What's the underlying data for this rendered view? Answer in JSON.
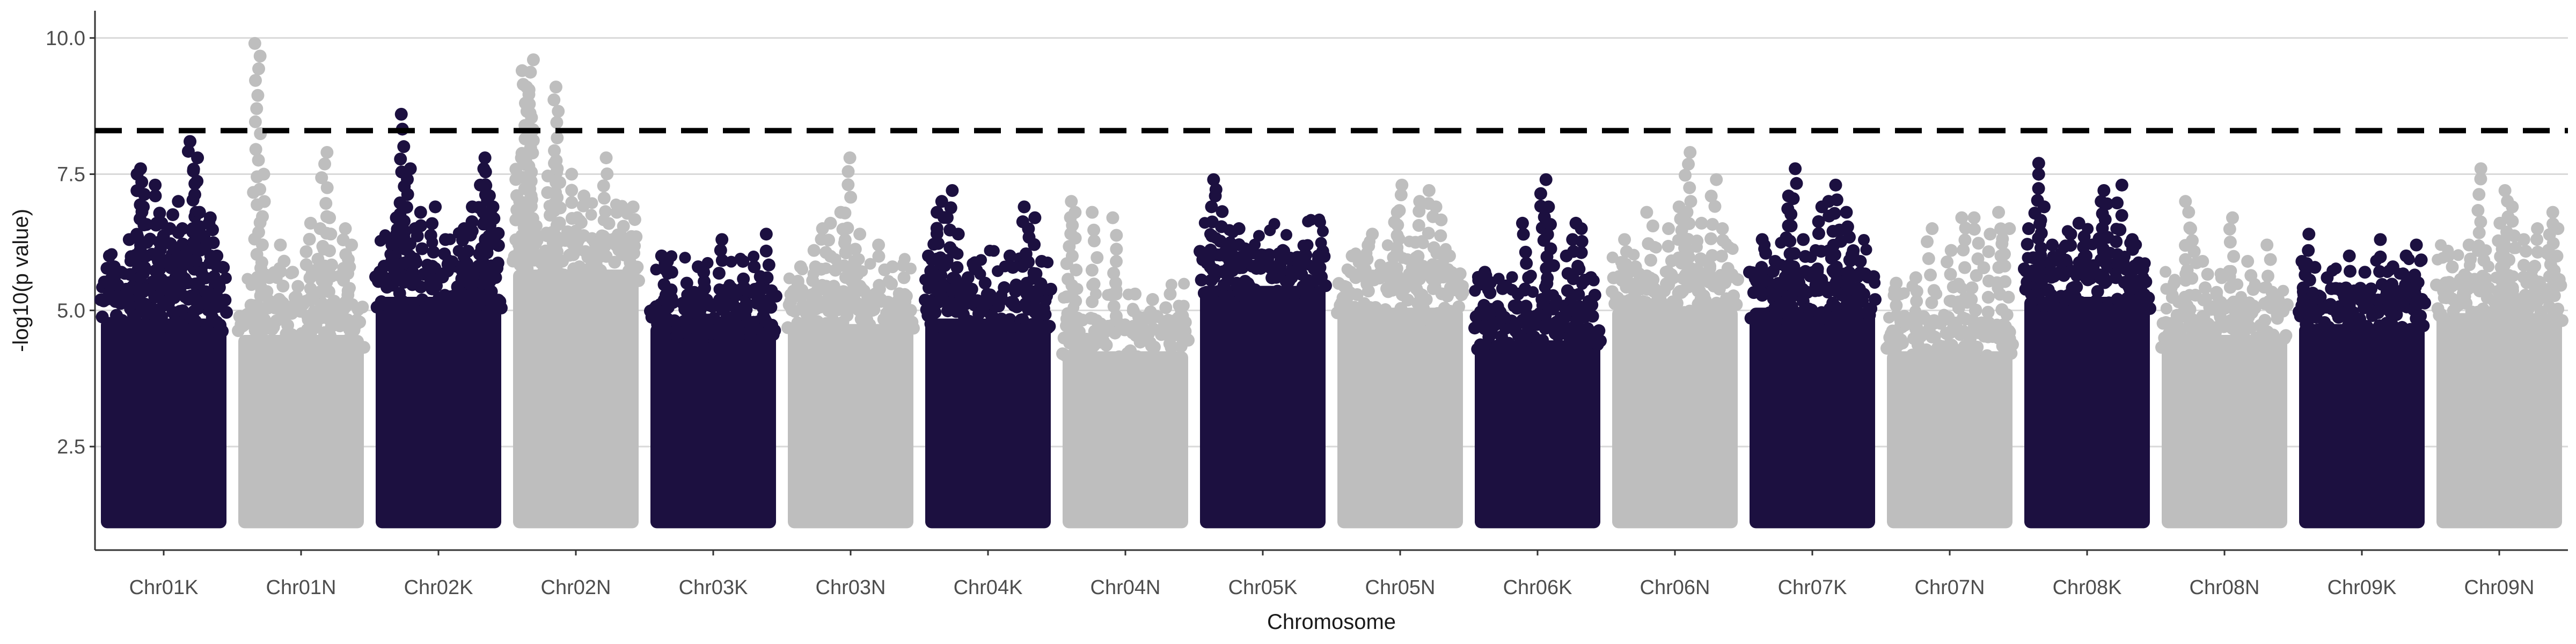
{
  "chart_data": {
    "type": "scatter",
    "subtype": "manhattan",
    "title": "",
    "xlabel": "Chromosome",
    "ylabel": "-log10(p value)",
    "ylim": [
      0.6,
      10.5
    ],
    "yticks": [
      2.5,
      5.0,
      7.5,
      10.0
    ],
    "ytick_labels": [
      "2.5",
      "5.0",
      "7.5",
      "10.0"
    ],
    "grid": "horizontal major lines only",
    "legend": "none",
    "threshold": {
      "value": 8.3,
      "style": "dashed",
      "color": "#000000"
    },
    "colors": {
      "odd": "#1c1040",
      "even": "#bebebe",
      "grid": "#d9d9d9",
      "axis": "#333333"
    },
    "chromosomes": [
      {
        "label": "Chr01K",
        "base_top": 5.1,
        "highs": [
          [
            0.05,
            6.0
          ],
          [
            0.1,
            5.8
          ],
          [
            0.15,
            5.7
          ],
          [
            0.25,
            6.3
          ],
          [
            0.3,
            7.5
          ],
          [
            0.32,
            7.6
          ],
          [
            0.35,
            6.9
          ],
          [
            0.42,
            6.6
          ],
          [
            0.45,
            7.3
          ],
          [
            0.5,
            6.6
          ],
          [
            0.55,
            6.5
          ],
          [
            0.6,
            7.0
          ],
          [
            0.65,
            6.5
          ],
          [
            0.72,
            8.1
          ],
          [
            0.74,
            7.8
          ],
          [
            0.78,
            6.8
          ],
          [
            0.85,
            6.6
          ],
          [
            0.9,
            6.7
          ],
          [
            0.95,
            6.0
          ]
        ]
      },
      {
        "label": "Chr01N",
        "base_top": 4.8,
        "highs": [
          [
            0.15,
            9.9
          ],
          [
            0.18,
            7.5
          ],
          [
            0.25,
            5.6
          ],
          [
            0.35,
            6.2
          ],
          [
            0.45,
            5.7
          ],
          [
            0.55,
            6.6
          ],
          [
            0.65,
            6.5
          ],
          [
            0.68,
            7.9
          ],
          [
            0.75,
            6.7
          ],
          [
            0.85,
            6.5
          ],
          [
            0.9,
            6.2
          ]
        ]
      },
      {
        "label": "Chr02K",
        "base_top": 5.5,
        "highs": [
          [
            0.1,
            6.2
          ],
          [
            0.15,
            6.7
          ],
          [
            0.2,
            8.6
          ],
          [
            0.25,
            7.6
          ],
          [
            0.3,
            6.5
          ],
          [
            0.35,
            6.8
          ],
          [
            0.45,
            6.9
          ],
          [
            0.55,
            6.3
          ],
          [
            0.7,
            6.5
          ],
          [
            0.75,
            6.9
          ],
          [
            0.85,
            7.3
          ],
          [
            0.88,
            7.6
          ],
          [
            0.9,
            7.8
          ],
          [
            0.95,
            6.9
          ]
        ]
      },
      {
        "label": "Chr02N",
        "base_top": 6.0,
        "highs": [
          [
            0.05,
            7.8
          ],
          [
            0.08,
            7.0
          ],
          [
            0.1,
            9.4
          ],
          [
            0.12,
            9.1
          ],
          [
            0.15,
            9.6
          ],
          [
            0.3,
            7.7
          ],
          [
            0.33,
            9.1
          ],
          [
            0.36,
            7.6
          ],
          [
            0.45,
            7.5
          ],
          [
            0.55,
            7.1
          ],
          [
            0.75,
            7.8
          ],
          [
            0.85,
            6.8
          ],
          [
            0.95,
            6.9
          ]
        ]
      },
      {
        "label": "Chr03K",
        "base_top": 5.0,
        "highs": [
          [
            0.1,
            6.0
          ],
          [
            0.15,
            5.9
          ],
          [
            0.3,
            5.5
          ],
          [
            0.4,
            5.8
          ],
          [
            0.45,
            5.7
          ],
          [
            0.55,
            6.3
          ],
          [
            0.65,
            5.4
          ],
          [
            0.75,
            5.9
          ],
          [
            0.85,
            5.8
          ],
          [
            0.95,
            6.4
          ]
        ]
      },
      {
        "label": "Chr03N",
        "base_top": 5.0,
        "highs": [
          [
            0.1,
            5.8
          ],
          [
            0.2,
            6.1
          ],
          [
            0.28,
            6.5
          ],
          [
            0.35,
            6.6
          ],
          [
            0.45,
            6.8
          ],
          [
            0.48,
            7.8
          ],
          [
            0.55,
            6.4
          ],
          [
            0.75,
            6.2
          ],
          [
            0.85,
            5.8
          ],
          [
            0.95,
            5.6
          ]
        ]
      },
      {
        "label": "Chr04K",
        "base_top": 5.1,
        "highs": [
          [
            0.05,
            6.0
          ],
          [
            0.08,
            6.8
          ],
          [
            0.12,
            7.0
          ],
          [
            0.2,
            7.2
          ],
          [
            0.25,
            6.4
          ],
          [
            0.35,
            5.6
          ],
          [
            0.5,
            5.5
          ],
          [
            0.6,
            5.2
          ],
          [
            0.7,
            6.0
          ],
          [
            0.8,
            6.9
          ],
          [
            0.85,
            6.7
          ],
          [
            0.9,
            5.9
          ]
        ]
      },
      {
        "label": "Chr04N",
        "base_top": 4.5,
        "highs": [
          [
            0.05,
            7.0
          ],
          [
            0.1,
            6.8
          ],
          [
            0.25,
            6.8
          ],
          [
            0.4,
            6.7
          ],
          [
            0.55,
            5.3
          ],
          [
            0.7,
            5.2
          ],
          [
            0.85,
            5.3
          ],
          [
            0.95,
            4.9
          ]
        ]
      },
      {
        "label": "Chr05K",
        "base_top": 5.7,
        "highs": [
          [
            0.1,
            7.4
          ],
          [
            0.15,
            7.1
          ],
          [
            0.2,
            6.2
          ],
          [
            0.3,
            6.5
          ],
          [
            0.45,
            6.0
          ],
          [
            0.55,
            5.8
          ],
          [
            0.65,
            6.1
          ],
          [
            0.8,
            5.9
          ],
          [
            0.95,
            6.0
          ]
        ]
      },
      {
        "label": "Chr05N",
        "base_top": 5.3,
        "highs": [
          [
            0.1,
            6.0
          ],
          [
            0.25,
            6.4
          ],
          [
            0.45,
            6.8
          ],
          [
            0.5,
            7.3
          ],
          [
            0.65,
            7.0
          ],
          [
            0.75,
            7.2
          ],
          [
            0.8,
            6.9
          ],
          [
            0.9,
            6.0
          ]
        ]
      },
      {
        "label": "Chr06K",
        "base_top": 4.7,
        "highs": [
          [
            0.1,
            5.7
          ],
          [
            0.2,
            5.4
          ],
          [
            0.35,
            5.3
          ],
          [
            0.4,
            6.6
          ],
          [
            0.55,
            7.4
          ],
          [
            0.6,
            6.9
          ],
          [
            0.75,
            6.0
          ],
          [
            0.8,
            6.6
          ],
          [
            0.85,
            6.5
          ],
          [
            0.95,
            5.6
          ]
        ]
      },
      {
        "label": "Chr06N",
        "base_top": 5.3,
        "highs": [
          [
            0.1,
            6.3
          ],
          [
            0.2,
            5.8
          ],
          [
            0.3,
            6.8
          ],
          [
            0.45,
            6.5
          ],
          [
            0.55,
            6.9
          ],
          [
            0.6,
            7.9
          ],
          [
            0.7,
            6.6
          ],
          [
            0.8,
            7.4
          ],
          [
            0.9,
            6.5
          ]
        ]
      },
      {
        "label": "Chr07K",
        "base_top": 5.3,
        "highs": [
          [
            0.1,
            6.3
          ],
          [
            0.2,
            5.9
          ],
          [
            0.3,
            7.1
          ],
          [
            0.35,
            7.6
          ],
          [
            0.45,
            6.3
          ],
          [
            0.55,
            6.9
          ],
          [
            0.65,
            7.0
          ],
          [
            0.7,
            7.3
          ],
          [
            0.8,
            6.8
          ],
          [
            0.9,
            5.9
          ]
        ]
      },
      {
        "label": "Chr07N",
        "base_top": 4.5,
        "highs": [
          [
            0.1,
            5.5
          ],
          [
            0.25,
            5.6
          ],
          [
            0.35,
            6.5
          ],
          [
            0.5,
            6.1
          ],
          [
            0.6,
            6.7
          ],
          [
            0.7,
            6.7
          ],
          [
            0.8,
            6.4
          ],
          [
            0.9,
            6.8
          ],
          [
            0.95,
            6.5
          ]
        ]
      },
      {
        "label": "Chr08K",
        "base_top": 5.5,
        "highs": [
          [
            0.05,
            6.5
          ],
          [
            0.1,
            7.7
          ],
          [
            0.15,
            6.9
          ],
          [
            0.2,
            6.2
          ],
          [
            0.35,
            6.4
          ],
          [
            0.45,
            6.6
          ],
          [
            0.5,
            6.0
          ],
          [
            0.6,
            7.0
          ],
          [
            0.65,
            7.2
          ],
          [
            0.75,
            7.3
          ],
          [
            0.85,
            6.3
          ],
          [
            0.95,
            5.8
          ]
        ]
      },
      {
        "label": "Chr08N",
        "base_top": 4.8,
        "highs": [
          [
            0.1,
            5.5
          ],
          [
            0.2,
            7.0
          ],
          [
            0.25,
            6.5
          ],
          [
            0.35,
            5.9
          ],
          [
            0.45,
            5.6
          ],
          [
            0.55,
            6.7
          ],
          [
            0.7,
            5.9
          ],
          [
            0.85,
            6.2
          ],
          [
            0.95,
            5.2
          ]
        ]
      },
      {
        "label": "Chr09K",
        "base_top": 5.0,
        "highs": [
          [
            0.05,
            5.9
          ],
          [
            0.1,
            6.4
          ],
          [
            0.25,
            5.6
          ],
          [
            0.4,
            6.0
          ],
          [
            0.5,
            5.7
          ],
          [
            0.65,
            6.3
          ],
          [
            0.75,
            5.8
          ],
          [
            0.85,
            6.0
          ],
          [
            0.95,
            6.2
          ]
        ]
      },
      {
        "label": "Chr09N",
        "base_top": 5.2,
        "highs": [
          [
            0.1,
            6.0
          ],
          [
            0.25,
            6.2
          ],
          [
            0.35,
            7.6
          ],
          [
            0.5,
            6.6
          ],
          [
            0.55,
            7.2
          ],
          [
            0.6,
            6.9
          ],
          [
            0.7,
            6.3
          ],
          [
            0.8,
            6.5
          ],
          [
            0.9,
            6.8
          ],
          [
            0.95,
            6.5
          ]
        ]
      }
    ]
  }
}
